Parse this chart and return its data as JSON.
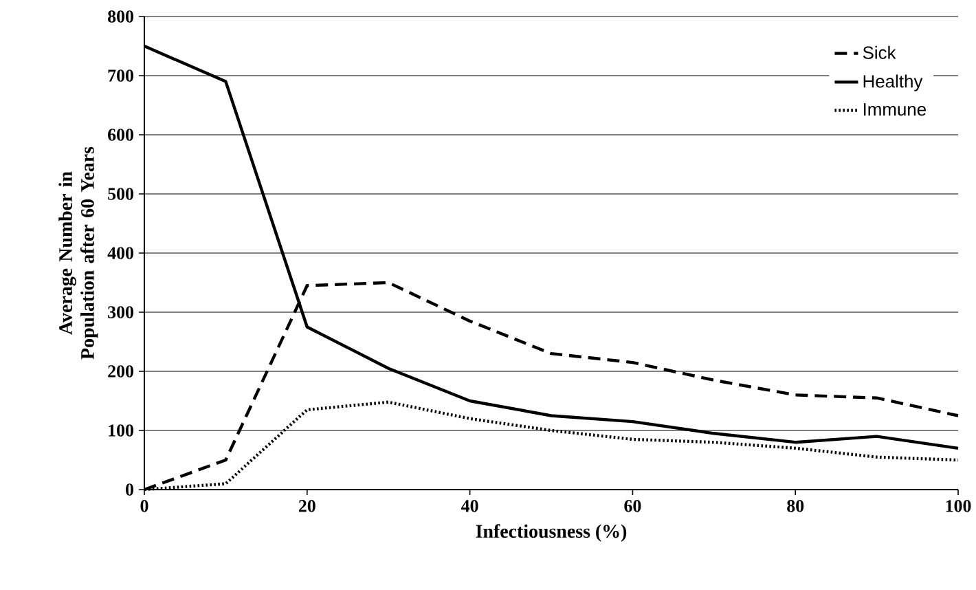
{
  "chart_data": {
    "type": "line",
    "xlabel": "Infectiousness (%)",
    "ylabel": "Average Number in Population after 60 Years",
    "x": [
      0,
      10,
      20,
      30,
      40,
      50,
      60,
      70,
      80,
      90,
      100
    ],
    "series": [
      {
        "name": "Sick",
        "color": "#000000",
        "line_style": "dashed",
        "values": [
          0,
          50,
          345,
          350,
          285,
          230,
          215,
          185,
          160,
          155,
          125
        ]
      },
      {
        "name": "Healthy",
        "color": "#000000",
        "line_style": "solid",
        "values": [
          750,
          690,
          275,
          205,
          150,
          125,
          115,
          95,
          80,
          90,
          70
        ]
      },
      {
        "name": "Immune",
        "color": "#000000",
        "line_style": "dotted",
        "values": [
          0,
          10,
          135,
          148,
          120,
          100,
          85,
          80,
          70,
          55,
          50
        ]
      }
    ],
    "xlim": [
      0,
      100
    ],
    "xticks": [
      0,
      20,
      40,
      60,
      80,
      100
    ],
    "ylim": [
      0,
      800
    ],
    "yticks": [
      0,
      100,
      200,
      300,
      400,
      500,
      600,
      700,
      800
    ],
    "grid": "y",
    "legend": "top right",
    "marker": "none"
  }
}
